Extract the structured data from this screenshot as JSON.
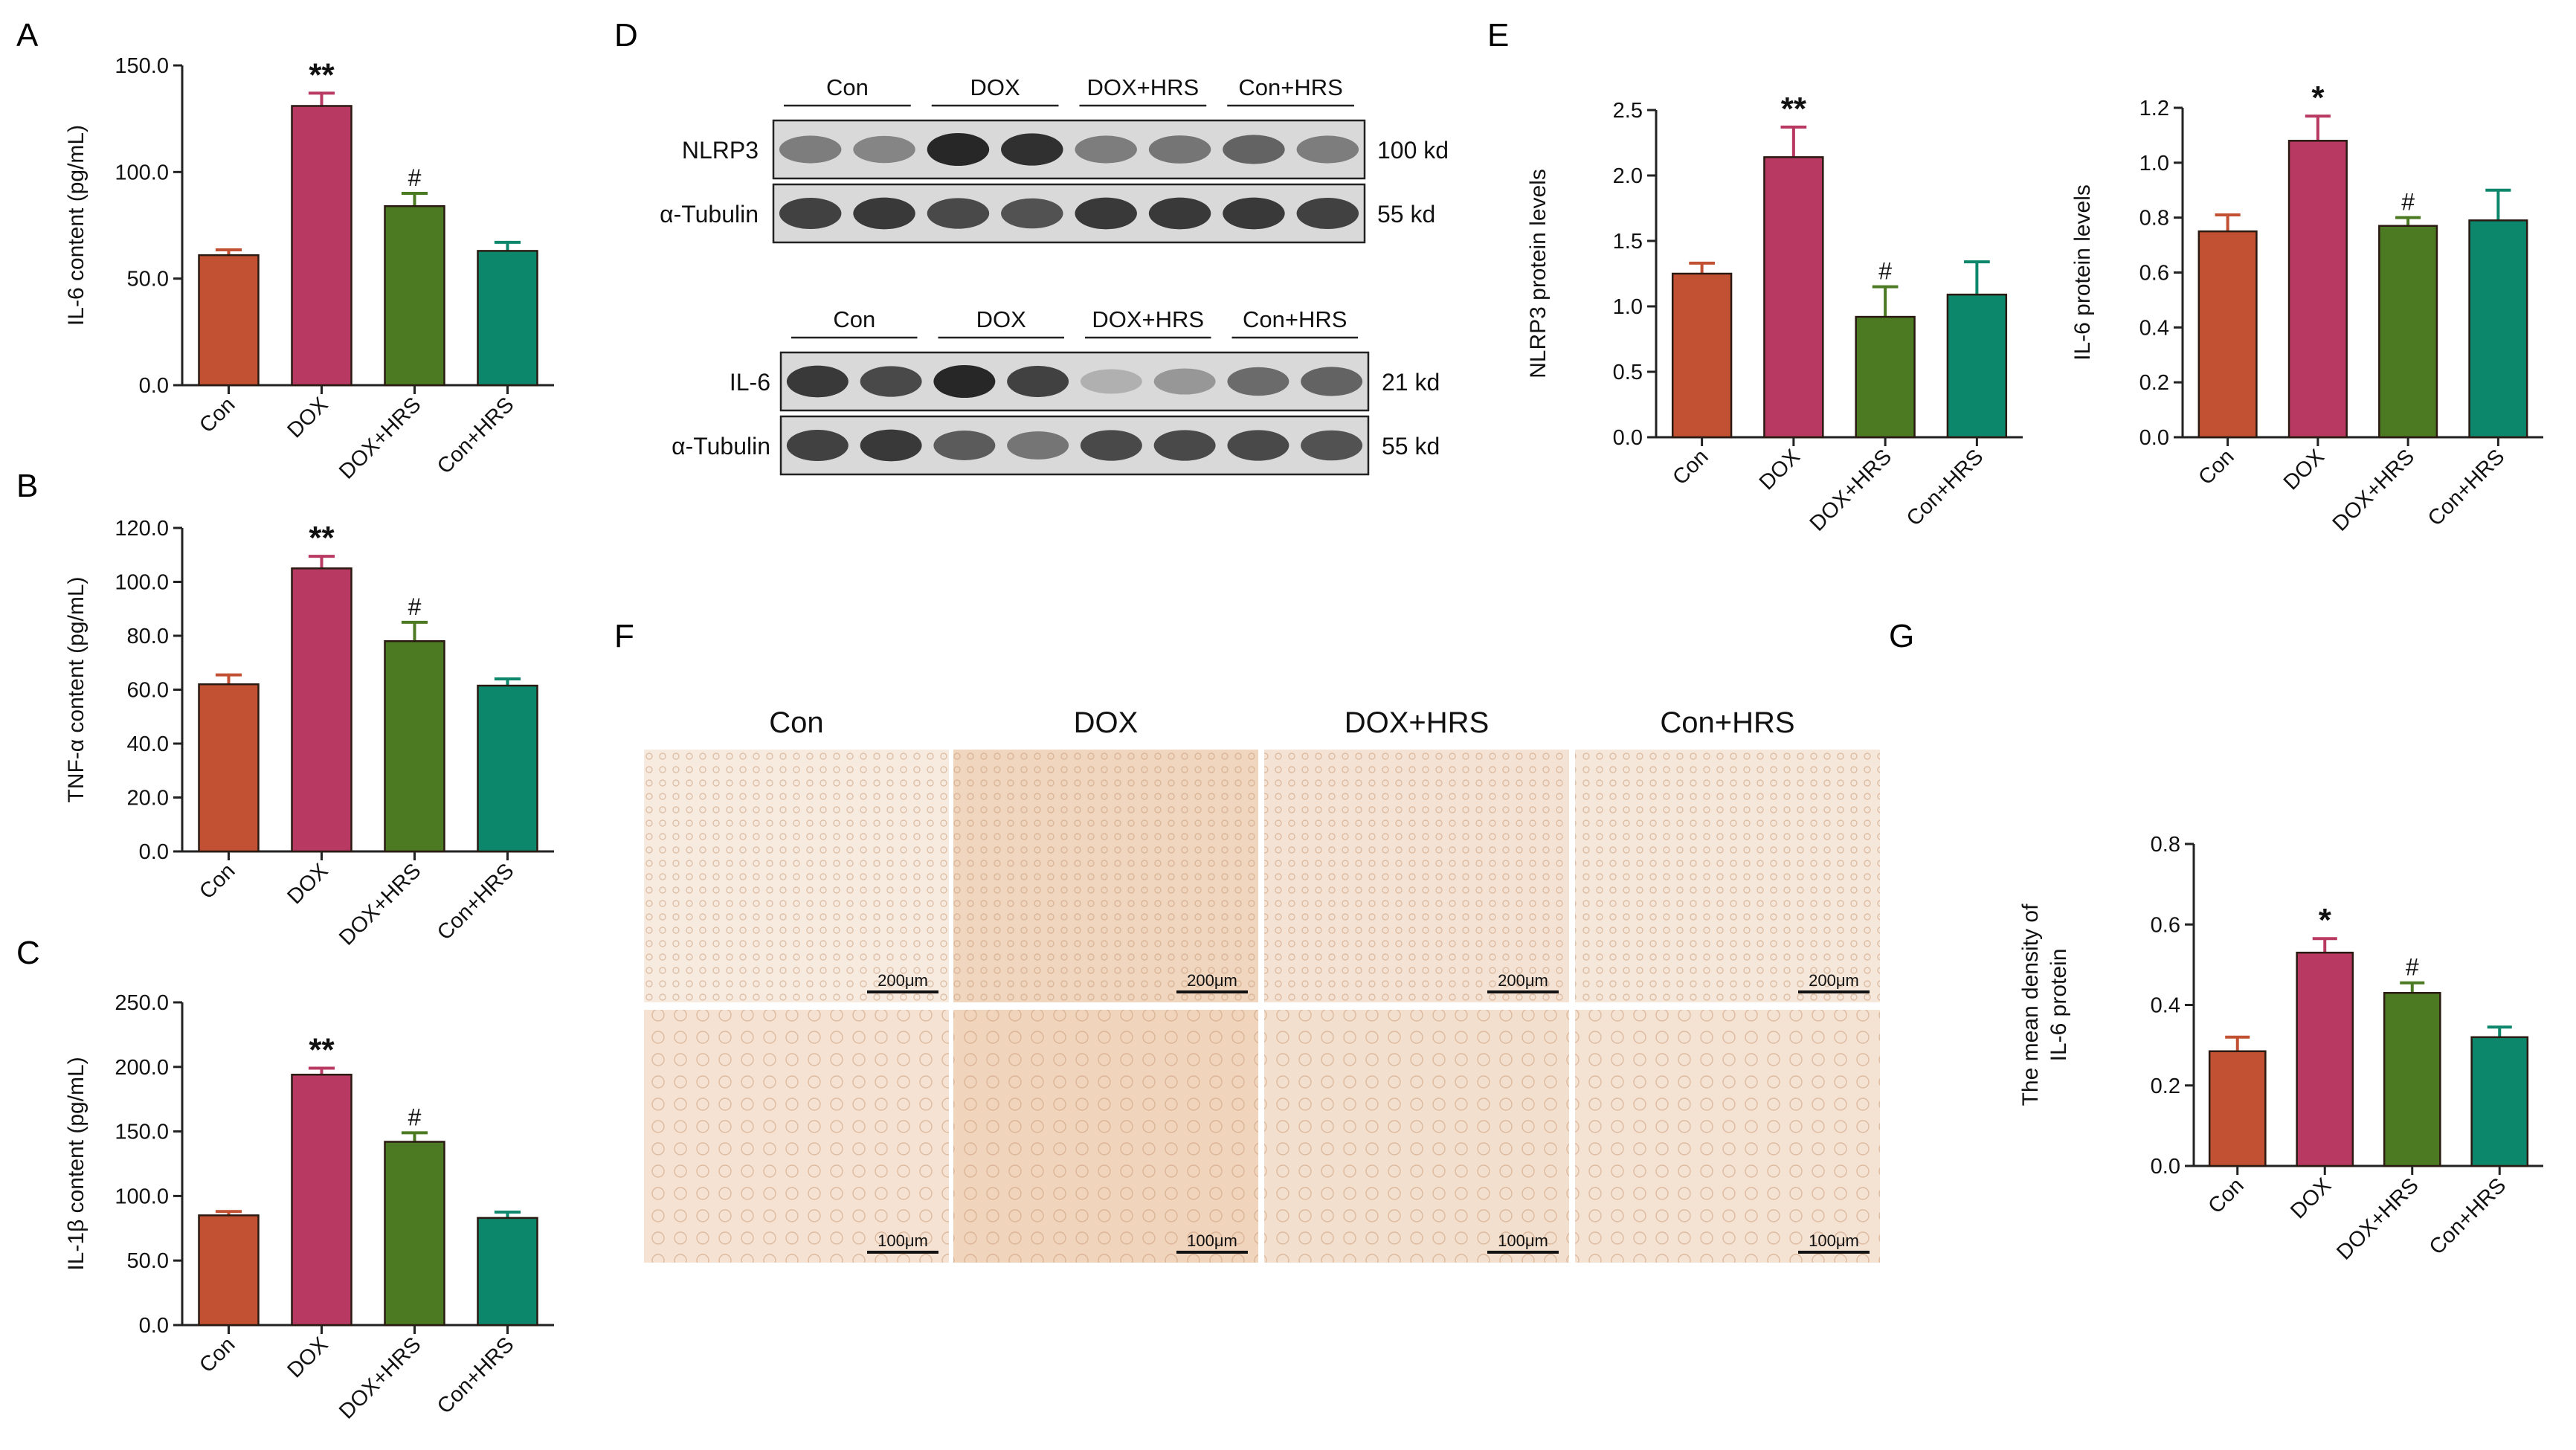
{
  "panel_letters": [
    "A",
    "B",
    "C",
    "D",
    "E",
    "F",
    "G"
  ],
  "colors": {
    "Con": "#c15132",
    "DOX": "#b83a62",
    "DOX+HRS": "#4b7a22",
    "Con+HRS": "#0d876b",
    "edge": "#222222"
  },
  "chart_data": [
    {
      "panel": "A",
      "type": "bar",
      "categories": [
        "Con",
        "DOX",
        "DOX+HRS",
        "Con+HRS"
      ],
      "values": [
        61,
        131,
        84,
        63
      ],
      "errors": [
        2.5,
        6,
        6,
        4
      ],
      "annotations": [
        "",
        "**",
        "#",
        ""
      ],
      "ylabel": "IL-6 content (pg/mL)",
      "ylim": [
        0,
        150
      ],
      "yticks": [
        "0.0",
        "50.0",
        "100.0",
        "150.0"
      ]
    },
    {
      "panel": "B",
      "type": "bar",
      "categories": [
        "Con",
        "DOX",
        "DOX+HRS",
        "Con+HRS"
      ],
      "values": [
        62,
        105,
        78,
        61.5
      ],
      "errors": [
        3.5,
        4.5,
        7,
        2.5
      ],
      "annotations": [
        "",
        "**",
        "#",
        ""
      ],
      "ylabel": "TNF-α content (pg/mL)",
      "ylim": [
        0,
        120
      ],
      "yticks": [
        "0.0",
        "20.0",
        "40.0",
        "60.0",
        "80.0",
        "100.0",
        "120.0"
      ]
    },
    {
      "panel": "C",
      "type": "bar",
      "categories": [
        "Con",
        "DOX",
        "DOX+HRS",
        "Con+HRS"
      ],
      "values": [
        85,
        194,
        142,
        83
      ],
      "errors": [
        3,
        5,
        7,
        4.5
      ],
      "annotations": [
        "",
        "**",
        "#",
        ""
      ],
      "ylabel": "IL-1β content (pg/mL)",
      "ylim": [
        0,
        250
      ],
      "yticks": [
        "0.0",
        "50.0",
        "100.0",
        "150.0",
        "200.0",
        "250.0"
      ]
    },
    {
      "panel": "E",
      "type": "bar",
      "categories": [
        "Con",
        "DOX",
        "DOX+HRS",
        "Con+HRS"
      ],
      "values": [
        1.25,
        2.14,
        0.92,
        1.09
      ],
      "errors": [
        0.08,
        0.23,
        0.23,
        0.25
      ],
      "annotations": [
        "",
        "**",
        "#",
        ""
      ],
      "ylabel": "NLRP3 protein levels",
      "ylim": [
        0,
        2.5
      ],
      "yticks": [
        "0.0",
        "0.5",
        "1.0",
        "1.5",
        "2.0",
        "2.5"
      ]
    },
    {
      "panel": "E",
      "type": "bar",
      "categories": [
        "Con",
        "DOX",
        "DOX+HRS",
        "Con+HRS"
      ],
      "values": [
        0.75,
        1.08,
        0.77,
        0.79
      ],
      "errors": [
        0.06,
        0.09,
        0.03,
        0.11
      ],
      "annotations": [
        "",
        "*",
        "#",
        ""
      ],
      "ylabel": "IL-6 protein levels",
      "ylim": [
        0,
        1.2
      ],
      "yticks": [
        "0.0",
        "0.2",
        "0.4",
        "0.6",
        "0.8",
        "1.0",
        "1.2"
      ]
    },
    {
      "panel": "G",
      "type": "bar",
      "categories": [
        "Con",
        "DOX",
        "DOX+HRS",
        "Con+HRS"
      ],
      "values": [
        0.285,
        0.53,
        0.43,
        0.32
      ],
      "errors": [
        0.035,
        0.035,
        0.025,
        0.025
      ],
      "annotations": [
        "",
        "*",
        "#",
        ""
      ],
      "ylabel": [
        "The mean density of",
        "IL-6 protein"
      ],
      "ylim": [
        0,
        0.8
      ],
      "yticks": [
        "0.0",
        "0.2",
        "0.4",
        "0.6",
        "0.8"
      ]
    }
  ],
  "western_blots": [
    {
      "groups": [
        "Con",
        "DOX",
        "DOX+HRS",
        "Con+HRS"
      ],
      "rows": [
        {
          "label": "NLRP3",
          "size": "100 kd",
          "intensities": [
            0.45,
            0.4,
            0.95,
            0.9,
            0.45,
            0.5,
            0.6,
            0.45
          ]
        },
        {
          "label": "α-Tubulin",
          "size": "55  kd",
          "intensities": [
            0.8,
            0.85,
            0.75,
            0.7,
            0.85,
            0.85,
            0.85,
            0.8
          ]
        }
      ]
    },
    {
      "groups": [
        "Con",
        "DOX",
        "DOX+HRS",
        "Con+HRS"
      ],
      "rows": [
        {
          "label": "IL-6",
          "size": "21  kd",
          "intensities": [
            0.85,
            0.75,
            0.95,
            0.8,
            0.15,
            0.3,
            0.55,
            0.6
          ]
        },
        {
          "label": "α-Tubulin",
          "size": "55  kd",
          "intensities": [
            0.8,
            0.85,
            0.65,
            0.5,
            0.75,
            0.75,
            0.75,
            0.7
          ]
        }
      ]
    }
  ],
  "histology": {
    "groups": [
      "Con",
      "DOX",
      "DOX+HRS",
      "Con+HRS"
    ],
    "rows": [
      {
        "scale": "200μm",
        "tints": [
          "#f7ebe0",
          "#f0d6bf",
          "#f4e3d4",
          "#f5e7da"
        ]
      },
      {
        "scale": "100μm",
        "tints": [
          "#f5e2d2",
          "#f0d4bc",
          "#f3dfcd",
          "#f4e2d3"
        ]
      }
    ]
  }
}
